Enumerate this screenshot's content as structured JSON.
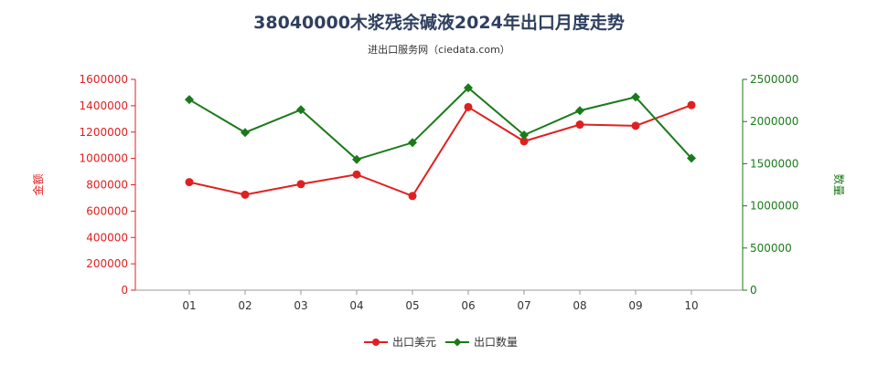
{
  "chart_data": {
    "type": "line",
    "title": "38040000木浆残余碱液2024年出口月度走势",
    "subtitle": "进出口服务网（ciedata.com）",
    "categories": [
      "01",
      "02",
      "03",
      "04",
      "05",
      "06",
      "07",
      "08",
      "09",
      "10"
    ],
    "y_left": {
      "label": "金额",
      "range": [
        0,
        1600000
      ],
      "ticks": [
        "0",
        "200000",
        "400000",
        "600000",
        "800000",
        "1000000",
        "1200000",
        "1400000",
        "1600000"
      ],
      "color": "#e02020"
    },
    "y_right": {
      "label": "数量",
      "range": [
        0,
        2500000
      ],
      "ticks": [
        "0",
        "500000",
        "1000000",
        "1500000",
        "2000000",
        "2500000"
      ],
      "color": "#1a7a1a"
    },
    "series": [
      {
        "name": "出口美元",
        "axis": "left",
        "marker": "circle",
        "color": "#e02020",
        "values": [
          820000,
          725000,
          805000,
          878000,
          715000,
          1390000,
          1130000,
          1257000,
          1248000,
          1405000
        ]
      },
      {
        "name": "出口数量",
        "axis": "right",
        "marker": "diamond",
        "color": "#1a7a1a",
        "values": [
          2260000,
          1870000,
          2140000,
          1550000,
          1750000,
          2400000,
          1840000,
          2130000,
          2290000,
          1565000
        ]
      }
    ],
    "legend": "bottom-center",
    "grid": false
  }
}
